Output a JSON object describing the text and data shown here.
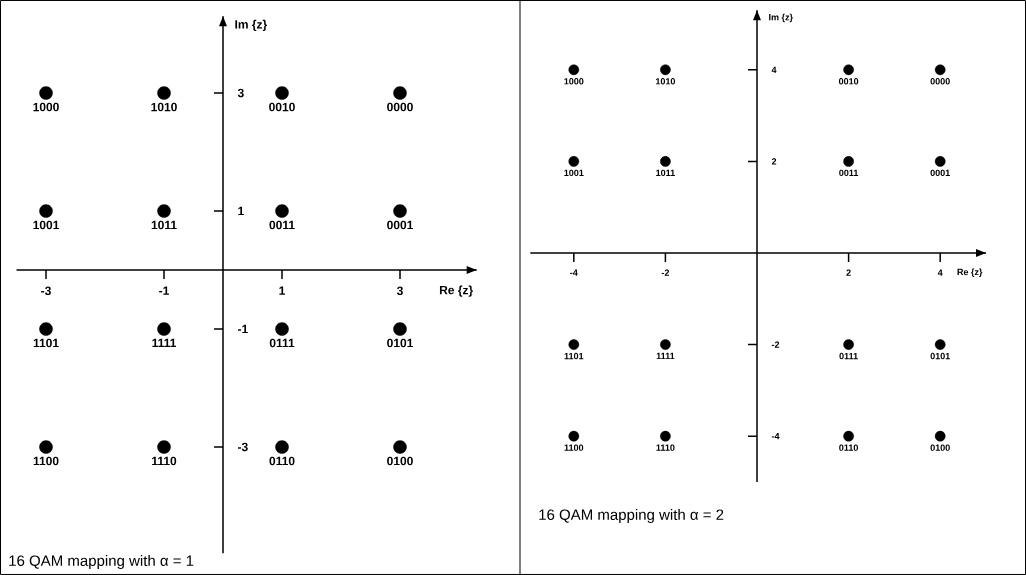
{
  "chart_data": [
    {
      "type": "scatter",
      "xlabel": "Re {z}",
      "ylabel": "Im {z}",
      "color": "#000000",
      "marker": "circle",
      "x": [
        -3,
        -1,
        1,
        3,
        -3,
        -1,
        1,
        3,
        -3,
        -1,
        1,
        3,
        -3,
        -1,
        1,
        3
      ],
      "values": [
        3,
        3,
        3,
        3,
        1,
        1,
        1,
        1,
        -1,
        -1,
        -1,
        -1,
        -3,
        -3,
        -3,
        -3
      ],
      "xlim": [
        -3.5,
        4.3
      ],
      "ylim": [
        -4.8,
        4.3
      ],
      "xticks": [
        -3,
        -1,
        1,
        3
      ],
      "yticks": [
        -3,
        -1,
        1,
        3
      ],
      "annotations": [
        {
          "text": "1000",
          "x": -3,
          "y": 3
        },
        {
          "text": "1010",
          "x": -1,
          "y": 3
        },
        {
          "text": "0010",
          "x": 1,
          "y": 3
        },
        {
          "text": "0000",
          "x": 3,
          "y": 3
        },
        {
          "text": "1001",
          "x": -3,
          "y": 1
        },
        {
          "text": "1011",
          "x": -1,
          "y": 1
        },
        {
          "text": "0011",
          "x": 1,
          "y": 1
        },
        {
          "text": "0001",
          "x": 3,
          "y": 1
        },
        {
          "text": "1101",
          "x": -3,
          "y": -1
        },
        {
          "text": "1111",
          "x": -1,
          "y": -1
        },
        {
          "text": "0111",
          "x": 1,
          "y": -1
        },
        {
          "text": "0101",
          "x": 3,
          "y": -1
        },
        {
          "text": "1100",
          "x": -3,
          "y": -3
        },
        {
          "text": "1110",
          "x": -1,
          "y": -3
        },
        {
          "text": "0110",
          "x": 1,
          "y": -3
        },
        {
          "text": "0100",
          "x": 3,
          "y": -3
        },
        "16 QAM mapping with α = 1"
      ]
    },
    {
      "type": "scatter",
      "xlabel": "Re {z}",
      "ylabel": "Im {z}",
      "color": "#000000",
      "marker": "circle",
      "x": [
        -4,
        -2,
        2,
        4,
        -4,
        -2,
        2,
        4,
        -4,
        -2,
        2,
        4,
        -4,
        -2,
        2,
        4
      ],
      "values": [
        4,
        4,
        4,
        4,
        2,
        2,
        2,
        2,
        -2,
        -2,
        -2,
        -2,
        -4,
        -4,
        -4,
        -4
      ],
      "xlim": [
        -4.95,
        5.0
      ],
      "ylim": [
        -5.0,
        5.3
      ],
      "xticks": [
        -4,
        -2,
        2,
        4
      ],
      "yticks": [
        -4,
        -2,
        2,
        4
      ],
      "annotations": [
        {
          "text": "1000",
          "x": -4,
          "y": 4
        },
        {
          "text": "1010",
          "x": -2,
          "y": 4
        },
        {
          "text": "0010",
          "x": 2,
          "y": 4
        },
        {
          "text": "0000",
          "x": 4,
          "y": 4
        },
        {
          "text": "1001",
          "x": -4,
          "y": 2
        },
        {
          "text": "1011",
          "x": -2,
          "y": 2
        },
        {
          "text": "0011",
          "x": 2,
          "y": 2
        },
        {
          "text": "0001",
          "x": 4,
          "y": 2
        },
        {
          "text": "1101",
          "x": -4,
          "y": -2
        },
        {
          "text": "1111",
          "x": -2,
          "y": -2
        },
        {
          "text": "0111",
          "x": 2,
          "y": -2
        },
        {
          "text": "0101",
          "x": 4,
          "y": -2
        },
        {
          "text": "1100",
          "x": -4,
          "y": -4
        },
        {
          "text": "1110",
          "x": -2,
          "y": -4
        },
        {
          "text": "0110",
          "x": 2,
          "y": -4
        },
        {
          "text": "0100",
          "x": 4,
          "y": -4
        },
        "16 QAM mapping with α = 2"
      ]
    }
  ]
}
